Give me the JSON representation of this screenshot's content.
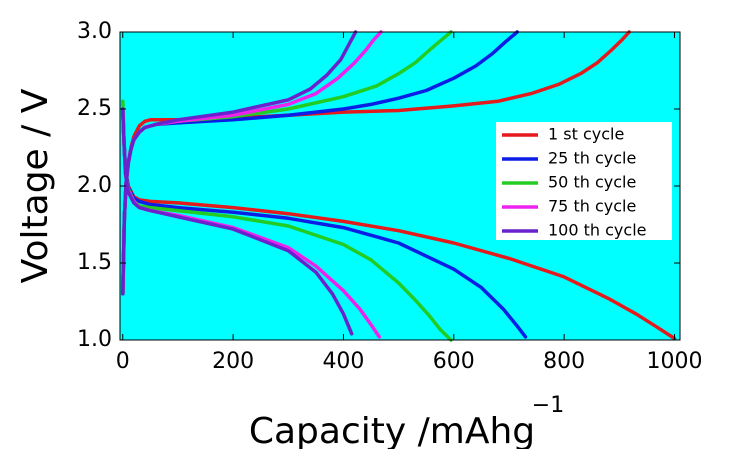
{
  "chart_data": {
    "type": "line",
    "xlabel": "Capacity /mAhg",
    "xlabel_superscript": "−1",
    "ylabel": "Voltage / V",
    "xlim": [
      -5,
      1010
    ],
    "ylim": [
      1.0,
      3.0
    ],
    "xticks": [
      0,
      200,
      400,
      600,
      800,
      1000
    ],
    "xtick_labels": [
      "0",
      "200",
      "400",
      "600",
      "800",
      "1000"
    ],
    "yticks": [
      1.0,
      1.5,
      2.0,
      2.5,
      3.0
    ],
    "ytick_labels": [
      "1.0",
      "1.5",
      "2.0",
      "2.5",
      "3.0"
    ],
    "plot_background": "#00ffff",
    "grid": false,
    "legend_position": "right",
    "series": [
      {
        "name": "1 st cycle",
        "color": "#e41a1c",
        "charge": {
          "x": [
            0,
            3,
            6,
            10,
            15,
            20,
            30,
            40,
            50,
            70,
            100,
            200,
            300,
            400,
            500,
            600,
            680,
            740,
            790,
            830,
            860,
            885,
            905,
            918
          ],
          "y": [
            1.3,
            1.8,
            2.02,
            2.15,
            2.25,
            2.32,
            2.39,
            2.42,
            2.43,
            2.43,
            2.43,
            2.44,
            2.46,
            2.48,
            2.49,
            2.52,
            2.55,
            2.6,
            2.66,
            2.73,
            2.8,
            2.88,
            2.95,
            3.0
          ]
        },
        "discharge": {
          "x": [
            0,
            2,
            5,
            10,
            20,
            30,
            50,
            100,
            200,
            300,
            400,
            500,
            600,
            700,
            800,
            880,
            930,
            970,
            1000
          ],
          "y": [
            2.5,
            2.3,
            2.1,
            2.0,
            1.93,
            1.91,
            1.9,
            1.89,
            1.86,
            1.82,
            1.77,
            1.71,
            1.63,
            1.53,
            1.41,
            1.27,
            1.17,
            1.08,
            1.01
          ]
        }
      },
      {
        "name": "25 th cycle",
        "color": "#0a1ee6",
        "charge": {
          "x": [
            0,
            3,
            6,
            10,
            15,
            20,
            30,
            40,
            60,
            100,
            200,
            300,
            400,
            450,
            500,
            550,
            600,
            640,
            670,
            695,
            715
          ],
          "y": [
            1.3,
            1.8,
            2.02,
            2.15,
            2.24,
            2.3,
            2.35,
            2.38,
            2.4,
            2.41,
            2.43,
            2.46,
            2.5,
            2.53,
            2.57,
            2.62,
            2.7,
            2.78,
            2.86,
            2.94,
            3.0
          ]
        },
        "discharge": {
          "x": [
            0,
            2,
            5,
            10,
            20,
            30,
            50,
            100,
            200,
            300,
            400,
            500,
            600,
            650,
            690,
            715,
            730
          ],
          "y": [
            2.5,
            2.3,
            2.1,
            1.99,
            1.92,
            1.9,
            1.88,
            1.86,
            1.83,
            1.79,
            1.73,
            1.63,
            1.46,
            1.34,
            1.2,
            1.09,
            1.02
          ]
        }
      },
      {
        "name": "50 th cycle",
        "color": "#22cc22",
        "charge": {
          "x": [
            0,
            3,
            6,
            10,
            15,
            20,
            30,
            40,
            60,
            100,
            200,
            300,
            400,
            460,
            500,
            530,
            555,
            575,
            595
          ],
          "y": [
            1.3,
            1.8,
            2.02,
            2.15,
            2.24,
            2.3,
            2.35,
            2.38,
            2.4,
            2.42,
            2.45,
            2.5,
            2.58,
            2.65,
            2.73,
            2.8,
            2.88,
            2.94,
            3.0
          ]
        },
        "discharge": {
          "x": [
            0,
            2,
            5,
            10,
            20,
            30,
            50,
            100,
            200,
            300,
            400,
            450,
            500,
            530,
            555,
            575,
            595
          ],
          "y": [
            2.55,
            2.3,
            2.08,
            1.98,
            1.9,
            1.87,
            1.86,
            1.84,
            1.8,
            1.74,
            1.62,
            1.52,
            1.37,
            1.26,
            1.16,
            1.07,
            1.0
          ]
        }
      },
      {
        "name": "75 th cycle",
        "color": "#ee22ee",
        "charge": {
          "x": [
            0,
            3,
            6,
            10,
            15,
            20,
            30,
            40,
            60,
            100,
            200,
            300,
            350,
            390,
            420,
            440,
            455,
            468
          ],
          "y": [
            1.3,
            1.8,
            2.02,
            2.15,
            2.24,
            2.3,
            2.35,
            2.38,
            2.4,
            2.42,
            2.46,
            2.53,
            2.6,
            2.7,
            2.8,
            2.88,
            2.95,
            3.0
          ]
        },
        "discharge": {
          "x": [
            0,
            2,
            5,
            10,
            20,
            30,
            50,
            100,
            200,
            300,
            350,
            400,
            430,
            450,
            465
          ],
          "y": [
            2.5,
            2.3,
            2.08,
            1.97,
            1.9,
            1.86,
            1.84,
            1.81,
            1.73,
            1.6,
            1.48,
            1.32,
            1.2,
            1.1,
            1.02
          ]
        }
      },
      {
        "name": "100 th cycle",
        "color": "#6a22cc",
        "charge": {
          "x": [
            0,
            3,
            6,
            10,
            15,
            20,
            30,
            40,
            60,
            100,
            200,
            300,
            340,
            370,
            395,
            410,
            422
          ],
          "y": [
            1.3,
            1.8,
            2.02,
            2.15,
            2.24,
            2.3,
            2.35,
            2.38,
            2.4,
            2.43,
            2.48,
            2.56,
            2.63,
            2.72,
            2.82,
            2.92,
            3.0
          ]
        },
        "discharge": {
          "x": [
            0,
            2,
            5,
            10,
            20,
            30,
            50,
            100,
            200,
            300,
            350,
            380,
            400,
            415
          ],
          "y": [
            2.5,
            2.3,
            2.08,
            1.96,
            1.89,
            1.86,
            1.84,
            1.8,
            1.72,
            1.58,
            1.44,
            1.3,
            1.17,
            1.04
          ]
        }
      }
    ]
  }
}
